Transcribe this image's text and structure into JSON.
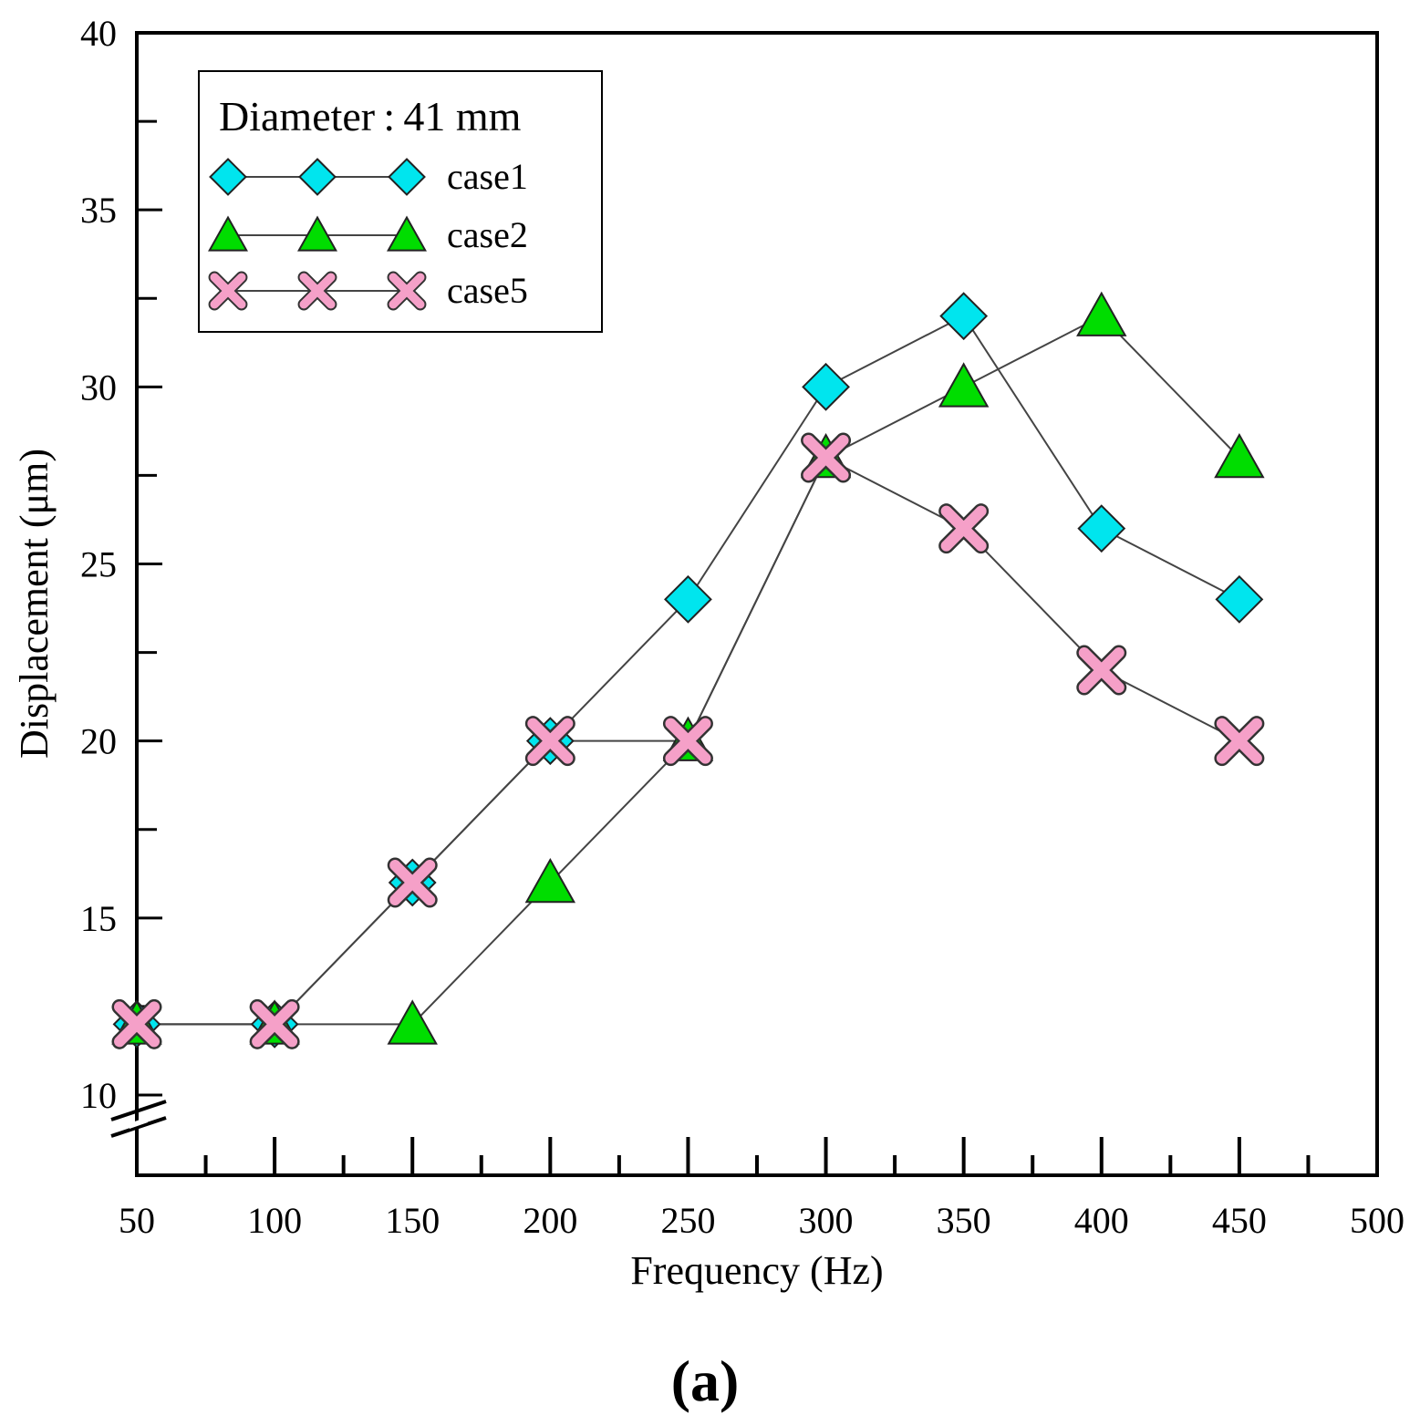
{
  "chart_data": {
    "type": "line",
    "xlabel": "Frequency (Hz)",
    "ylabel": "Displacement (μm)",
    "xlim": [
      50,
      500
    ],
    "ylim": [
      10,
      40
    ],
    "x_ticks": [
      "50",
      "100",
      "150",
      "200",
      "250",
      "300",
      "350",
      "400",
      "450",
      "500"
    ],
    "y_ticks": [
      "10",
      "15",
      "20",
      "25",
      "30",
      "35",
      "40"
    ],
    "y_axis_break": true,
    "grid": false,
    "legend": {
      "title": "Diameter : 41 mm",
      "placement": "top-left"
    },
    "x": [
      50,
      100,
      150,
      200,
      250,
      300,
      350,
      400,
      450
    ],
    "series": [
      {
        "name": "case1",
        "marker": "diamond",
        "color": "#00e5ee",
        "line_color": "#444444",
        "values": [
          12,
          12,
          16,
          20,
          24,
          30,
          32,
          26,
          24
        ]
      },
      {
        "name": "case2",
        "marker": "triangle",
        "color": "#00dd00",
        "line_color": "#444444",
        "values": [
          12,
          12,
          12,
          16,
          20,
          28,
          30,
          32,
          28
        ]
      },
      {
        "name": "case5",
        "marker": "x",
        "color": "#f5a0c8",
        "line_color": "#444444",
        "values": [
          12,
          12,
          16,
          20,
          20,
          28,
          26,
          22,
          20
        ]
      }
    ],
    "panel_label": "(a)"
  }
}
